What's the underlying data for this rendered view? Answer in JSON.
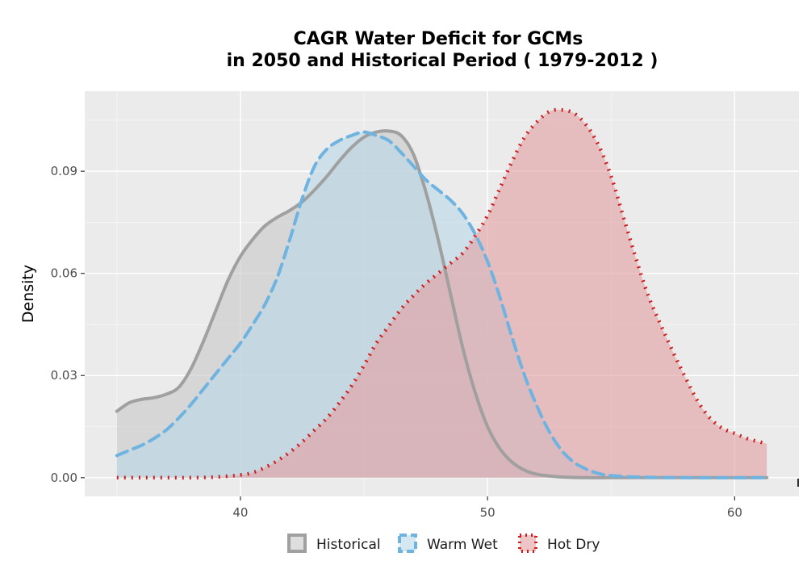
{
  "chart_data": {
    "type": "area",
    "title_line1": "CAGR  Water Deficit for GCMs",
    "title_line2": "in 2050 and Historical Period ( 1979-2012 )",
    "xlabel": "",
    "ylabel": "Density",
    "xlim": [
      33.7,
      62.6
    ],
    "ylim": [
      -0.0055,
      0.1135
    ],
    "x_ticks": [
      40,
      50,
      60
    ],
    "y_ticks": [
      0.0,
      0.03,
      0.06,
      0.09
    ],
    "x_tick_labels": [
      "40",
      "50",
      "60"
    ],
    "y_tick_labels": [
      "0.00",
      "0.03",
      "0.06",
      "0.09"
    ],
    "grid": true,
    "legend_position": "bottom",
    "series": [
      {
        "name": "Historical",
        "line_style": "solid",
        "line_color": "#a0a0a0",
        "fill_color": "#c8c8c8",
        "x": [
          35.0,
          35.5,
          36.0,
          36.5,
          37.0,
          37.5,
          38.0,
          38.5,
          39.0,
          39.5,
          40.0,
          40.5,
          41.0,
          41.5,
          42.0,
          42.5,
          43.0,
          43.5,
          44.0,
          44.5,
          45.0,
          45.5,
          46.0,
          46.5,
          47.0,
          47.5,
          48.0,
          48.5,
          49.0,
          49.5,
          50.0,
          50.5,
          51.0,
          51.5,
          52.0,
          52.5,
          53.0,
          54.0,
          55.0,
          56.0,
          58.0,
          61.3
        ],
        "y": [
          0.0195,
          0.022,
          0.023,
          0.0235,
          0.0245,
          0.0265,
          0.032,
          0.04,
          0.049,
          0.058,
          0.065,
          0.07,
          0.074,
          0.0765,
          0.0785,
          0.081,
          0.0845,
          0.0885,
          0.093,
          0.097,
          0.1,
          0.1015,
          0.1018,
          0.1005,
          0.095,
          0.084,
          0.07,
          0.054,
          0.038,
          0.025,
          0.015,
          0.0085,
          0.0045,
          0.0022,
          0.001,
          0.0005,
          0.0002,
          0.0,
          0.0,
          0.0,
          0.0,
          0.0
        ]
      },
      {
        "name": "Warm Wet",
        "line_style": "dashed",
        "line_color": "#6fb3e0",
        "fill_color": "#b9d9ea",
        "x": [
          35.0,
          35.5,
          36.0,
          36.5,
          37.0,
          37.5,
          38.0,
          38.5,
          39.0,
          39.5,
          40.0,
          40.5,
          41.0,
          41.5,
          42.0,
          42.5,
          43.0,
          43.5,
          44.0,
          44.5,
          45.0,
          45.5,
          46.0,
          46.5,
          47.0,
          47.5,
          48.0,
          48.5,
          49.0,
          49.5,
          50.0,
          50.5,
          51.0,
          51.5,
          52.0,
          52.5,
          53.0,
          53.5,
          54.0,
          54.5,
          55.0,
          56.0,
          58.0,
          61.3
        ],
        "y": [
          0.0065,
          0.008,
          0.0095,
          0.0115,
          0.014,
          0.0175,
          0.0215,
          0.026,
          0.0305,
          0.035,
          0.0395,
          0.045,
          0.051,
          0.059,
          0.07,
          0.082,
          0.0915,
          0.0965,
          0.099,
          0.1005,
          0.1015,
          0.1005,
          0.099,
          0.0955,
          0.0915,
          0.0875,
          0.0845,
          0.0815,
          0.0775,
          0.0715,
          0.0635,
          0.053,
          0.041,
          0.03,
          0.021,
          0.0135,
          0.008,
          0.0045,
          0.0025,
          0.0012,
          0.0006,
          0.0002,
          0.0,
          0.0
        ]
      },
      {
        "name": "Hot Dry",
        "line_style": "dotted",
        "line_color": "#cc1f1f",
        "fill_color": "#e39ea1",
        "x": [
          35.0,
          36.0,
          37.0,
          38.0,
          39.0,
          40.0,
          40.5,
          41.0,
          41.5,
          42.0,
          42.5,
          43.0,
          43.5,
          44.0,
          44.5,
          45.0,
          45.5,
          46.0,
          46.5,
          47.0,
          47.5,
          48.0,
          48.5,
          49.0,
          49.5,
          50.0,
          50.5,
          51.0,
          51.5,
          52.0,
          52.5,
          53.0,
          53.5,
          54.0,
          54.5,
          55.0,
          55.5,
          56.0,
          56.5,
          57.0,
          57.5,
          58.0,
          58.5,
          59.0,
          59.5,
          60.0,
          60.5,
          61.0,
          61.3
        ],
        "y": [
          0.0,
          0.0,
          0.0,
          0.0,
          0.0002,
          0.0008,
          0.0015,
          0.003,
          0.005,
          0.0075,
          0.0105,
          0.014,
          0.0175,
          0.022,
          0.027,
          0.033,
          0.0395,
          0.0445,
          0.0495,
          0.0535,
          0.057,
          0.06,
          0.063,
          0.066,
          0.071,
          0.077,
          0.085,
          0.093,
          0.1,
          0.1045,
          0.1075,
          0.108,
          0.107,
          0.1035,
          0.0975,
          0.0885,
          0.0765,
          0.0645,
          0.0535,
          0.045,
          0.037,
          0.0295,
          0.0225,
          0.0175,
          0.0145,
          0.013,
          0.0115,
          0.0105,
          0.01
        ]
      }
    ]
  }
}
